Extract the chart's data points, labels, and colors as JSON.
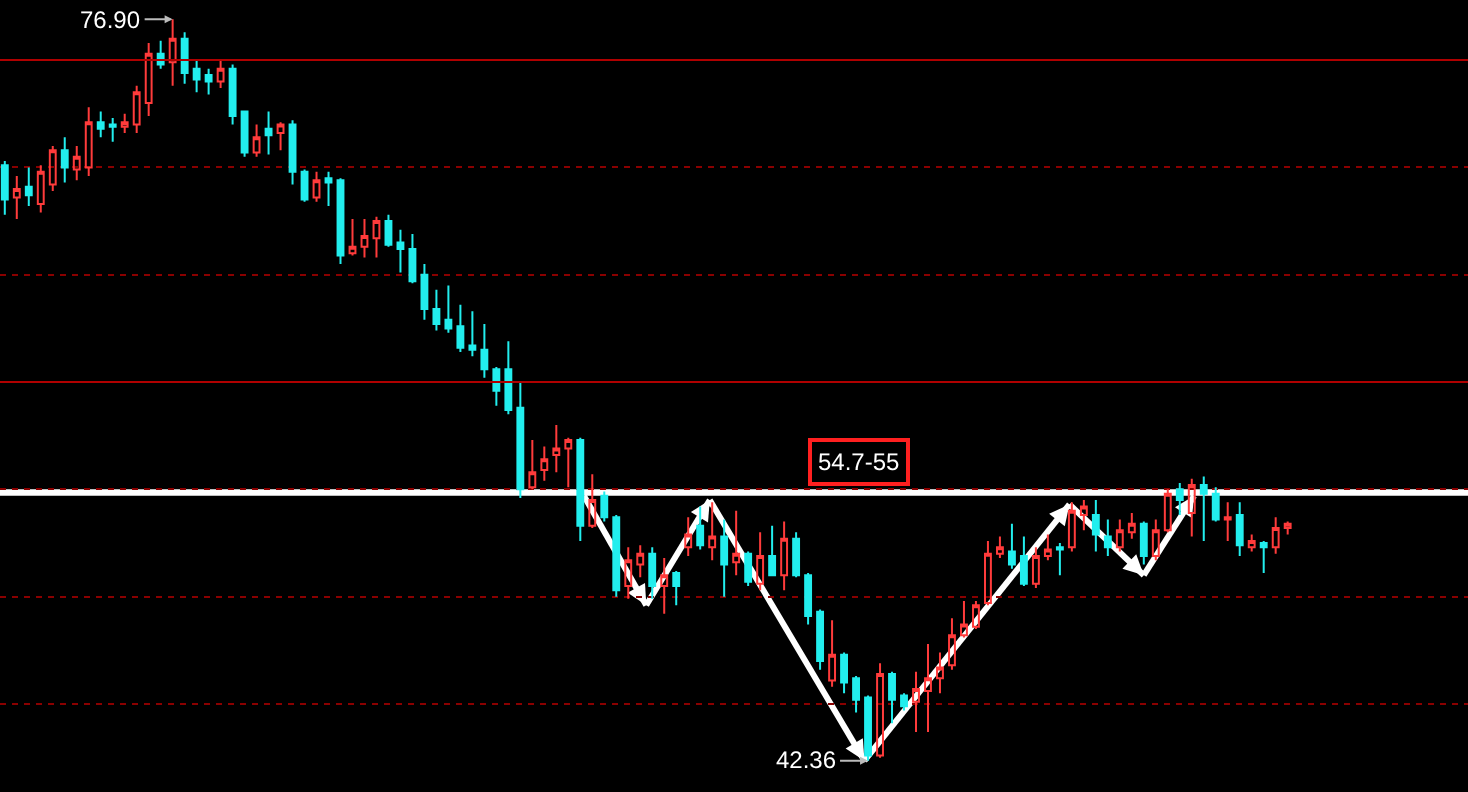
{
  "chart_data": {
    "type": "candlestick",
    "categories": [
      null,
      null,
      null,
      null,
      null,
      null,
      null,
      null,
      null,
      null,
      null,
      null,
      null,
      null,
      null,
      null,
      null,
      null,
      null,
      null,
      null,
      null,
      null,
      null,
      null,
      null,
      null,
      null,
      null,
      null,
      null,
      null,
      null,
      null,
      null,
      null,
      null,
      null,
      null,
      null,
      null,
      null,
      null,
      null,
      null,
      null,
      null,
      null,
      null,
      null,
      null,
      null,
      null,
      null,
      null,
      null,
      null,
      null,
      null,
      null,
      null,
      null,
      null,
      null,
      null,
      null,
      null,
      null,
      null,
      null,
      null,
      null,
      null,
      null,
      null,
      null,
      null,
      null,
      null,
      null,
      null,
      null,
      null,
      null,
      null,
      null,
      null,
      null,
      null,
      null,
      null,
      null,
      null,
      null,
      null,
      null,
      null,
      null,
      null,
      null,
      null,
      null,
      null,
      null,
      null,
      null,
      null,
      null
    ],
    "ohlc": [
      [
        70.1,
        70.3,
        67.8,
        68.5
      ],
      [
        68.6,
        69.6,
        67.6,
        69.0
      ],
      [
        69.1,
        70.0,
        68.2,
        68.7
      ],
      [
        68.3,
        70.1,
        67.9,
        69.8
      ],
      [
        69.2,
        71.0,
        68.9,
        70.8
      ],
      [
        70.8,
        71.4,
        69.3,
        70.0
      ],
      [
        69.9,
        71.0,
        69.4,
        70.5
      ],
      [
        70.0,
        72.8,
        69.6,
        72.1
      ],
      [
        72.1,
        72.6,
        71.4,
        71.8
      ],
      [
        72.0,
        72.3,
        71.2,
        71.9
      ],
      [
        71.9,
        72.5,
        71.6,
        72.1
      ],
      [
        72.0,
        73.8,
        71.6,
        73.5
      ],
      [
        73.0,
        75.8,
        72.4,
        75.3
      ],
      [
        75.3,
        75.9,
        74.6,
        74.8
      ],
      [
        74.9,
        76.9,
        73.8,
        76.0
      ],
      [
        76.0,
        76.3,
        73.9,
        74.4
      ],
      [
        74.6,
        75.0,
        73.5,
        74.1
      ],
      [
        74.3,
        74.6,
        73.4,
        74.0
      ],
      [
        74.0,
        75.0,
        73.7,
        74.6
      ],
      [
        74.6,
        74.8,
        72.0,
        72.4
      ],
      [
        72.6,
        72.6,
        70.5,
        70.7
      ],
      [
        70.7,
        72.0,
        70.5,
        71.4
      ],
      [
        71.8,
        72.6,
        70.6,
        71.5
      ],
      [
        71.6,
        72.1,
        70.8,
        72.0
      ],
      [
        72.0,
        72.2,
        69.2,
        69.8
      ],
      [
        69.8,
        69.9,
        68.4,
        68.5
      ],
      [
        68.6,
        69.8,
        68.4,
        69.4
      ],
      [
        69.5,
        69.8,
        68.2,
        69.3
      ],
      [
        69.4,
        69.5,
        65.5,
        65.9
      ],
      [
        66.0,
        67.6,
        65.9,
        66.3
      ],
      [
        66.3,
        67.6,
        65.8,
        66.8
      ],
      [
        66.7,
        67.7,
        65.8,
        67.5
      ],
      [
        67.5,
        67.8,
        66.3,
        66.4
      ],
      [
        66.5,
        67.1,
        65.1,
        66.2
      ],
      [
        66.2,
        66.9,
        64.6,
        64.7
      ],
      [
        65.0,
        65.5,
        62.9,
        63.4
      ],
      [
        63.4,
        64.3,
        62.4,
        62.7
      ],
      [
        62.9,
        64.5,
        62.3,
        62.5
      ],
      [
        62.6,
        63.6,
        61.4,
        61.6
      ],
      [
        61.7,
        63.3,
        61.2,
        61.5
      ],
      [
        61.5,
        62.7,
        60.2,
        60.6
      ],
      [
        60.6,
        60.7,
        58.9,
        59.6
      ],
      [
        60.6,
        61.9,
        58.5,
        58.7
      ],
      [
        58.8,
        60.0,
        54.6,
        55.0
      ],
      [
        55.1,
        57.3,
        55.0,
        55.8
      ],
      [
        55.9,
        57.0,
        55.4,
        56.4
      ],
      [
        56.6,
        58.0,
        55.8,
        56.9
      ],
      [
        56.9,
        57.4,
        55.1,
        57.3
      ],
      [
        57.3,
        57.4,
        52.6,
        53.3
      ],
      [
        53.3,
        55.7,
        53.2,
        54.5
      ],
      [
        54.7,
        54.9,
        53.5,
        53.7
      ],
      [
        53.7,
        53.8,
        50.0,
        50.3
      ],
      [
        50.5,
        52.3,
        49.9,
        51.7
      ],
      [
        51.5,
        52.4,
        50.9,
        52.0
      ],
      [
        52.0,
        52.3,
        49.9,
        50.5
      ],
      [
        50.5,
        51.8,
        49.2,
        51.0
      ],
      [
        51.1,
        51.2,
        49.6,
        50.5
      ],
      [
        52.3,
        53.7,
        51.9,
        52.9
      ],
      [
        53.3,
        54.2,
        52.2,
        52.4
      ],
      [
        52.3,
        54.4,
        51.7,
        52.8
      ],
      [
        52.8,
        53.6,
        50.0,
        51.5
      ],
      [
        51.6,
        54.0,
        51.0,
        52.0
      ],
      [
        52.0,
        52.1,
        50.5,
        50.7
      ],
      [
        50.6,
        53.0,
        50.3,
        51.9
      ],
      [
        51.9,
        53.3,
        51.0,
        51.0
      ],
      [
        51.0,
        53.5,
        50.3,
        52.7
      ],
      [
        52.7,
        53.0,
        50.9,
        51.0
      ],
      [
        51.0,
        51.1,
        48.7,
        49.1
      ],
      [
        49.3,
        49.4,
        46.6,
        47.0
      ],
      [
        46.1,
        48.9,
        45.8,
        47.3
      ],
      [
        47.3,
        47.4,
        45.5,
        46.0
      ],
      [
        46.2,
        46.3,
        44.6,
        45.2
      ],
      [
        45.3,
        45.4,
        42.36,
        42.6
      ],
      [
        42.6,
        46.9,
        42.5,
        46.4
      ],
      [
        46.4,
        46.5,
        44.1,
        45.2
      ],
      [
        45.4,
        45.5,
        44.7,
        44.9
      ],
      [
        45.1,
        46.5,
        43.7,
        45.7
      ],
      [
        45.6,
        47.8,
        43.7,
        46.2
      ],
      [
        46.2,
        47.4,
        45.5,
        46.7
      ],
      [
        46.8,
        49.0,
        46.6,
        48.2
      ],
      [
        48.2,
        49.8,
        48.1,
        48.7
      ],
      [
        48.6,
        49.8,
        48.5,
        49.6
      ],
      [
        49.7,
        52.6,
        49.6,
        52.0
      ],
      [
        52.0,
        52.8,
        51.8,
        52.3
      ],
      [
        52.1,
        53.4,
        51.3,
        51.5
      ],
      [
        51.9,
        52.8,
        50.5,
        50.6
      ],
      [
        50.6,
        52.3,
        50.4,
        51.9
      ],
      [
        51.9,
        52.9,
        51.7,
        52.2
      ],
      [
        52.3,
        52.5,
        51.0,
        52.2
      ],
      [
        52.3,
        54.4,
        52.1,
        54.0
      ],
      [
        53.8,
        54.5,
        53.1,
        54.2
      ],
      [
        53.8,
        54.5,
        52.1,
        52.9
      ],
      [
        52.8,
        53.6,
        51.9,
        52.3
      ],
      [
        52.3,
        53.6,
        52.1,
        53.1
      ],
      [
        53.0,
        53.9,
        52.7,
        53.4
      ],
      [
        53.4,
        53.5,
        51.5,
        51.9
      ],
      [
        51.9,
        53.6,
        51.7,
        53.1
      ],
      [
        53.1,
        55.0,
        53.0,
        54.8
      ],
      [
        55.0,
        55.3,
        53.8,
        54.5
      ],
      [
        53.9,
        55.5,
        52.8,
        55.2
      ],
      [
        55.2,
        55.6,
        52.6,
        54.8
      ],
      [
        54.8,
        55.1,
        53.5,
        53.6
      ],
      [
        53.6,
        54.4,
        52.6,
        53.7
      ],
      [
        53.8,
        54.4,
        51.9,
        52.4
      ],
      [
        52.3,
        52.9,
        52.1,
        52.6
      ],
      [
        52.5,
        52.6,
        51.1,
        52.3
      ],
      [
        52.3,
        53.7,
        52.0,
        53.2
      ],
      [
        53.2,
        53.5,
        52.9,
        53.4
      ]
    ],
    "colors": [
      "#22eeee",
      "#ff3b3b",
      "#22eeee",
      "#ff3b3b",
      "#ff3b3b",
      "#22eeee",
      "#ff3b3b",
      "#ff3b3b",
      "#22eeee",
      "#22eeee",
      "#ff3b3b",
      "#ff3b3b",
      "#ff3b3b",
      "#22eeee",
      "#ff3b3b",
      "#22eeee",
      "#22eeee",
      "#22eeee",
      "#ff3b3b",
      "#22eeee",
      "#22eeee",
      "#ff3b3b",
      "#22eeee",
      "#ff3b3b",
      "#22eeee",
      "#22eeee",
      "#ff3b3b",
      "#22eeee",
      "#22eeee",
      "#ff3b3b",
      "#ff3b3b",
      "#ff3b3b",
      "#22eeee",
      "#22eeee",
      "#22eeee",
      "#22eeee",
      "#22eeee",
      "#22eeee",
      "#22eeee",
      "#22eeee",
      "#22eeee",
      "#22eeee",
      "#22eeee",
      "#22eeee",
      "#ff3b3b",
      "#ff3b3b",
      "#ff3b3b",
      "#ff3b3b",
      "#22eeee",
      "#ff3b3b",
      "#22eeee",
      "#22eeee",
      "#ff3b3b",
      "#ff3b3b",
      "#22eeee",
      "#ff3b3b",
      "#22eeee",
      "#ff3b3b",
      "#22eeee",
      "#ff3b3b",
      "#22eeee",
      "#ff3b3b",
      "#22eeee",
      "#ff3b3b",
      "#22eeee",
      "#ff3b3b",
      "#22eeee",
      "#22eeee",
      "#22eeee",
      "#ff3b3b",
      "#22eeee",
      "#22eeee",
      "#22eeee",
      "#ff3b3b",
      "#22eeee",
      "#22eeee",
      "#ff3b3b",
      "#ff3b3b",
      "#ff3b3b",
      "#ff3b3b",
      "#ff3b3b",
      "#ff3b3b",
      "#ff3b3b",
      "#ff3b3b",
      "#22eeee",
      "#22eeee",
      "#ff3b3b",
      "#ff3b3b",
      "#22eeee",
      "#ff3b3b",
      "#ff3b3b",
      "#22eeee",
      "#22eeee",
      "#ff3b3b",
      "#ff3b3b",
      "#22eeee",
      "#ff3b3b",
      "#ff3b3b",
      "#22eeee",
      "#ff3b3b",
      "#22eeee",
      "#22eeee",
      "#ff3b3b",
      "#22eeee",
      "#ff3b3b",
      "#22eeee",
      "#ff3b3b",
      "#ff3b3b"
    ],
    "ylim": [
      40.9,
      77.8
    ],
    "yticks": [
      {
        "value": 45,
        "label": null
      },
      {
        "value": 50,
        "label": null
      },
      {
        "value": 55,
        "label": null
      },
      {
        "value": 65,
        "label": null
      },
      {
        "value": 70,
        "label": null
      }
    ],
    "grid": "y",
    "ref_lines": [
      {
        "axis": "y",
        "value": 75,
        "color": "#b00000"
      },
      {
        "axis": "y",
        "value": 60,
        "color": "#b00000"
      }
    ],
    "bands": [
      {
        "axis": "y",
        "from": 54.7,
        "to": 55,
        "label": "54.7-55",
        "color": "#ffffff"
      }
    ],
    "annotations": [
      "76.90",
      "42.36"
    ]
  }
}
